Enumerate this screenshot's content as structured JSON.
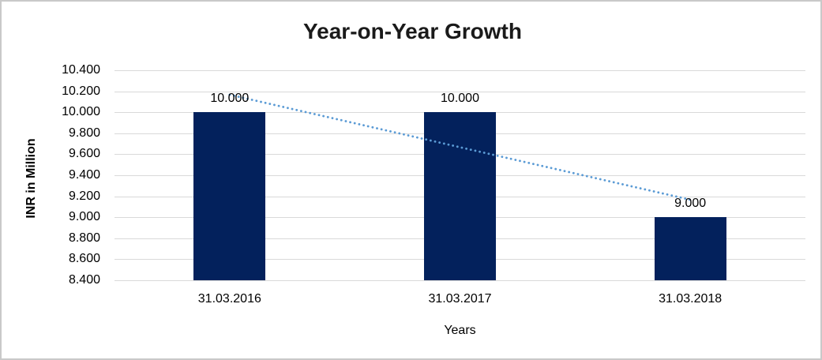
{
  "chart_data": {
    "type": "bar",
    "title": "Year-on-Year Growth",
    "xlabel": "Years",
    "ylabel": "INR in Million",
    "categories": [
      "31.03.2016",
      "31.03.2017",
      "31.03.2018"
    ],
    "values": [
      10.0,
      10.0,
      9.0
    ],
    "data_labels": [
      "10.000",
      "10.000",
      "9.000"
    ],
    "ylim": [
      8.4,
      10.4
    ],
    "ytick_step": 0.2,
    "ytick_labels": [
      "10.400",
      "10.200",
      "10.000",
      "9.800",
      "9.600",
      "9.400",
      "9.200",
      "9.000",
      "8.800",
      "8.600",
      "8.400"
    ],
    "grid": "horizontal",
    "legend": "none",
    "colors": {
      "bar": "#03215C",
      "trendline": "#5B9BD5",
      "gridline": "#D9D9D9",
      "frame_border": "#C9C9C9",
      "title_text": "#1A1A1A",
      "axis_text": "#000000"
    },
    "trendline": {
      "type": "linear",
      "style": "dotted",
      "start_value": 10.167,
      "end_value": 9.167
    }
  }
}
